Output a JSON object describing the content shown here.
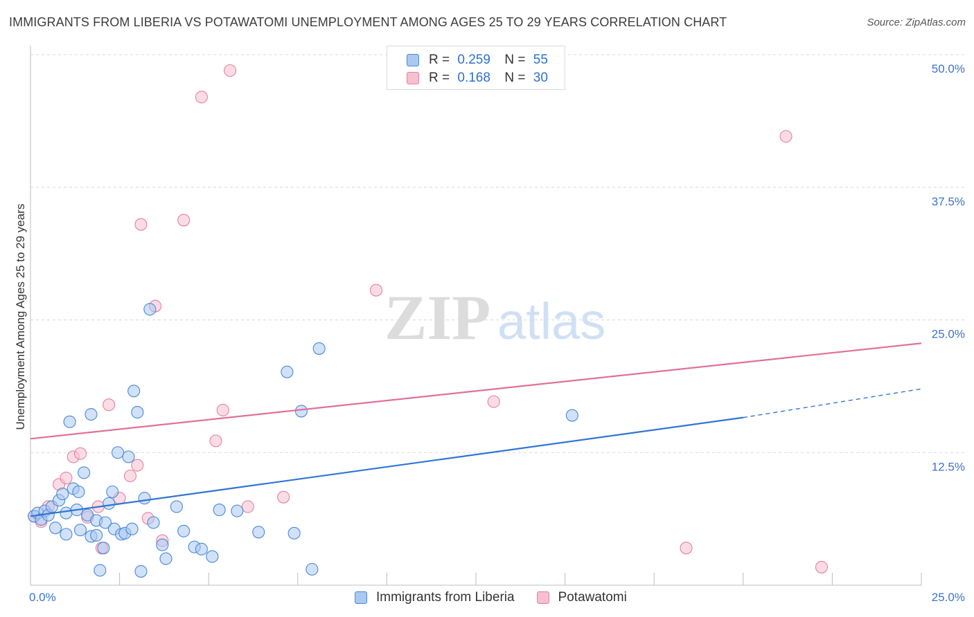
{
  "title": "IMMIGRANTS FROM LIBERIA VS POTAWATOMI UNEMPLOYMENT AMONG AGES 25 TO 29 YEARS CORRELATION CHART",
  "source": "Source: ZipAtlas.com",
  "watermark": {
    "zip": "ZIP",
    "atlas": "atlas"
  },
  "colors": {
    "blue_fill": "#a9c8f2",
    "blue_stroke": "#4a88d6",
    "blue_line": "#2f74d4",
    "pink_fill": "#f8bfd0",
    "pink_stroke": "#e57fa0",
    "pink_line": "#e0709a",
    "axis_text": "#3a73cc",
    "grid": "#d8d8d8"
  },
  "legend_top": {
    "rows": [
      {
        "r_label": "R =",
        "r_value": "0.259",
        "n_label": "N =",
        "n_value": "55"
      },
      {
        "r_label": "R =",
        "r_value": "0.168",
        "n_label": "N =",
        "n_value": "30"
      }
    ]
  },
  "legend_bottom": {
    "series_a": "Immigrants from Liberia",
    "series_b": "Potawatomi"
  },
  "chart_data": {
    "type": "scatter",
    "title": "IMMIGRANTS FROM LIBERIA VS POTAWATOMI UNEMPLOYMENT AMONG AGES 25 TO 29 YEARS CORRELATION CHART",
    "xlabel": "",
    "ylabel": "Unemployment Among Ages 25 to 29 years",
    "xlim": [
      0,
      25
    ],
    "ylim": [
      0,
      50
    ],
    "x_tick_labels": [
      "0.0%",
      "25.0%"
    ],
    "y_ticks": [
      12.5,
      25.0,
      37.5,
      50.0
    ],
    "y_tick_labels": [
      "12.5%",
      "25.0%",
      "37.5%",
      "50.0%"
    ],
    "grid": true,
    "legend": "top-center",
    "series": [
      {
        "name": "Immigrants from Liberia",
        "r": 0.259,
        "n": 55,
        "trend": {
          "x0": 0,
          "y0": 6.5,
          "x1": 20,
          "y1": 15.8,
          "dash_to_x": 25,
          "dash_to_y": 18.5
        },
        "points": [
          [
            0.1,
            6.5
          ],
          [
            0.2,
            6.8
          ],
          [
            0.3,
            6.2
          ],
          [
            0.4,
            7.0
          ],
          [
            0.5,
            6.6
          ],
          [
            0.6,
            7.4
          ],
          [
            0.7,
            5.4
          ],
          [
            0.8,
            8.0
          ],
          [
            0.9,
            8.6
          ],
          [
            1.0,
            4.8
          ],
          [
            1.0,
            6.8
          ],
          [
            1.1,
            15.4
          ],
          [
            1.2,
            9.1
          ],
          [
            1.3,
            7.1
          ],
          [
            1.35,
            8.8
          ],
          [
            1.4,
            5.2
          ],
          [
            1.5,
            10.6
          ],
          [
            1.6,
            6.6
          ],
          [
            1.7,
            4.6
          ],
          [
            1.7,
            16.1
          ],
          [
            1.85,
            4.7
          ],
          [
            1.85,
            6.1
          ],
          [
            1.95,
            1.4
          ],
          [
            2.05,
            3.5
          ],
          [
            2.1,
            5.9
          ],
          [
            2.2,
            7.7
          ],
          [
            2.3,
            8.8
          ],
          [
            2.35,
            5.3
          ],
          [
            2.45,
            12.5
          ],
          [
            2.55,
            4.8
          ],
          [
            2.65,
            4.9
          ],
          [
            2.75,
            12.1
          ],
          [
            2.85,
            5.3
          ],
          [
            2.9,
            18.3
          ],
          [
            3.0,
            16.3
          ],
          [
            3.1,
            1.3
          ],
          [
            3.2,
            8.2
          ],
          [
            3.35,
            26.0
          ],
          [
            3.45,
            5.9
          ],
          [
            3.7,
            3.8
          ],
          [
            3.8,
            2.5
          ],
          [
            4.1,
            7.4
          ],
          [
            4.3,
            5.1
          ],
          [
            4.6,
            3.6
          ],
          [
            4.8,
            3.4
          ],
          [
            5.1,
            2.7
          ],
          [
            5.3,
            7.1
          ],
          [
            5.8,
            7.0
          ],
          [
            6.4,
            5.0
          ],
          [
            7.2,
            20.1
          ],
          [
            7.4,
            4.9
          ],
          [
            7.6,
            16.4
          ],
          [
            7.9,
            1.5
          ],
          [
            8.1,
            22.3
          ],
          [
            15.2,
            16.0
          ]
        ]
      },
      {
        "name": "Potawatomi",
        "r": 0.168,
        "n": 30,
        "trend": {
          "x0": 0,
          "y0": 13.8,
          "x1": 25,
          "y1": 22.8
        },
        "points": [
          [
            0.1,
            6.5
          ],
          [
            0.3,
            6.0
          ],
          [
            0.5,
            7.4
          ],
          [
            0.8,
            9.5
          ],
          [
            1.0,
            10.1
          ],
          [
            1.2,
            12.1
          ],
          [
            1.4,
            12.4
          ],
          [
            1.6,
            6.4
          ],
          [
            1.9,
            7.4
          ],
          [
            2.0,
            3.5
          ],
          [
            2.2,
            17.0
          ],
          [
            2.5,
            8.2
          ],
          [
            2.8,
            10.3
          ],
          [
            3.0,
            11.3
          ],
          [
            3.1,
            34.0
          ],
          [
            3.3,
            6.3
          ],
          [
            3.5,
            26.3
          ],
          [
            3.7,
            4.2
          ],
          [
            4.3,
            34.4
          ],
          [
            4.8,
            46.0
          ],
          [
            5.2,
            13.6
          ],
          [
            5.4,
            16.5
          ],
          [
            5.6,
            48.5
          ],
          [
            6.1,
            7.4
          ],
          [
            7.1,
            8.3
          ],
          [
            9.7,
            27.8
          ],
          [
            13.0,
            17.3
          ],
          [
            18.4,
            3.5
          ],
          [
            21.2,
            42.3
          ],
          [
            22.2,
            1.7
          ]
        ]
      }
    ]
  }
}
